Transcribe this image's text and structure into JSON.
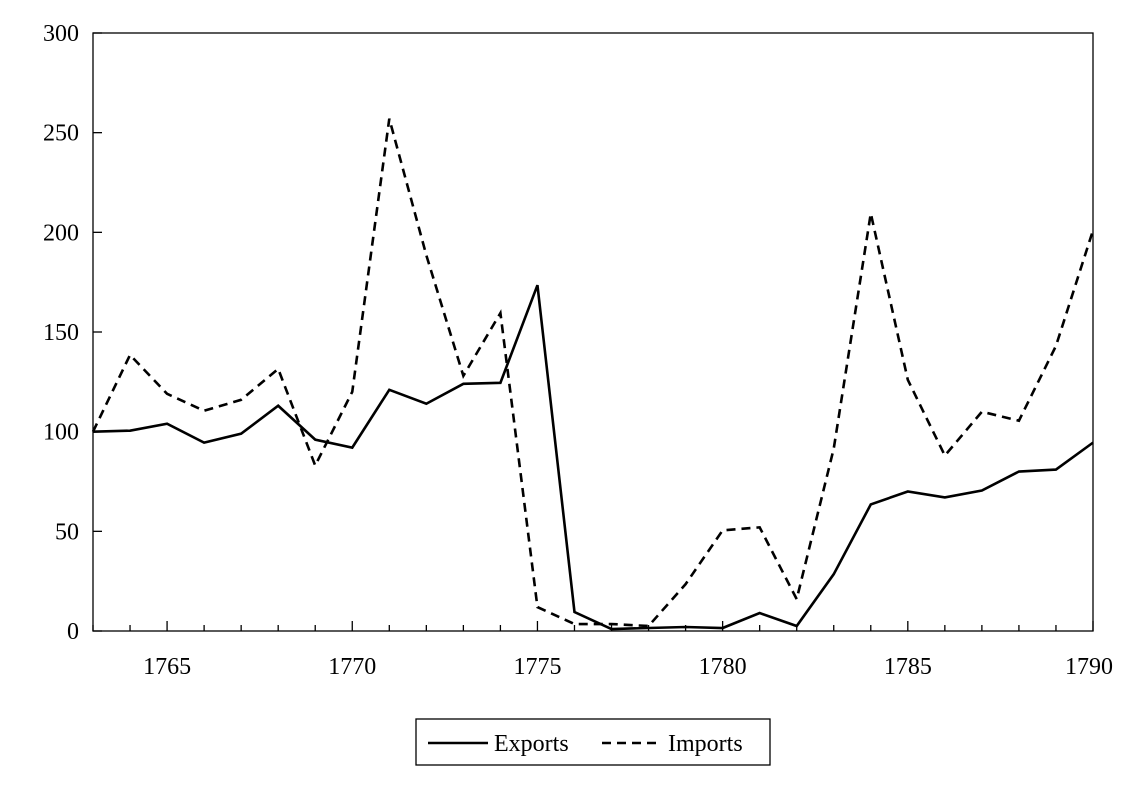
{
  "chart_data": {
    "type": "line",
    "title": "",
    "xlabel": "",
    "ylabel": "",
    "x": [
      1763,
      1764,
      1765,
      1766,
      1767,
      1768,
      1769,
      1770,
      1771,
      1772,
      1773,
      1774,
      1775,
      1776,
      1777,
      1778,
      1779,
      1780,
      1781,
      1782,
      1783,
      1784,
      1785,
      1786,
      1787,
      1788,
      1789,
      1790
    ],
    "xlim": [
      1763,
      1790
    ],
    "ylim": [
      0,
      300
    ],
    "xticks": [
      1765,
      1770,
      1775,
      1780,
      1785,
      1790
    ],
    "yticks": [
      0,
      50,
      100,
      150,
      200,
      250,
      300
    ],
    "grid": false,
    "legend_position": "bottom-center",
    "series": [
      {
        "name": "Exports",
        "style": "solid",
        "color": "#000000",
        "values": [
          100,
          100.5,
          104,
          94.5,
          99,
          113,
          96,
          92,
          121,
          114,
          124,
          124.5,
          173.5,
          9.5,
          1,
          1.5,
          2,
          1.5,
          9,
          2.5,
          28.5,
          63.5,
          70,
          67,
          70.5,
          80,
          81,
          94.5
        ]
      },
      {
        "name": "Imports",
        "style": "dashed",
        "color": "#000000",
        "values": [
          100,
          138.5,
          119,
          110.5,
          116,
          131.5,
          83,
          120,
          257,
          188.5,
          128,
          159.5,
          12,
          3.5,
          3.5,
          2.5,
          23.5,
          50.5,
          52,
          16,
          91.5,
          209.5,
          126,
          88,
          110,
          105.5,
          143,
          201
        ]
      }
    ]
  }
}
